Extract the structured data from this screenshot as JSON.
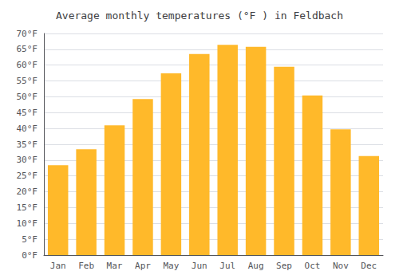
{
  "chart_data": {
    "type": "bar",
    "title": "Average monthly temperatures (°F ) in Feldbach",
    "categories": [
      "Jan",
      "Feb",
      "Mar",
      "Apr",
      "May",
      "Jun",
      "Jul",
      "Aug",
      "Sep",
      "Oct",
      "Nov",
      "Dec"
    ],
    "values": [
      28.4,
      33.4,
      41.0,
      49.3,
      57.4,
      63.5,
      66.4,
      65.8,
      59.5,
      50.4,
      39.7,
      31.3
    ],
    "color": "#FFB92A",
    "ylim": [
      0,
      70
    ],
    "yticks": [
      {
        "value": 0,
        "label": "0°F"
      },
      {
        "value": 5,
        "label": "5°F"
      },
      {
        "value": 10,
        "label": "10°F"
      },
      {
        "value": 15,
        "label": "15°F"
      },
      {
        "value": 20,
        "label": "20°F"
      },
      {
        "value": 25,
        "label": "25°F"
      },
      {
        "value": 30,
        "label": "30°F"
      },
      {
        "value": 35,
        "label": "35°F"
      },
      {
        "value": 40,
        "label": "40°F"
      },
      {
        "value": 45,
        "label": "45°F"
      },
      {
        "value": 50,
        "label": "50°F"
      },
      {
        "value": 55,
        "label": "55°F"
      },
      {
        "value": 60,
        "label": "60°F"
      },
      {
        "value": 65,
        "label": "65°F"
      },
      {
        "value": 70,
        "label": "70°F"
      }
    ],
    "grid": true
  }
}
